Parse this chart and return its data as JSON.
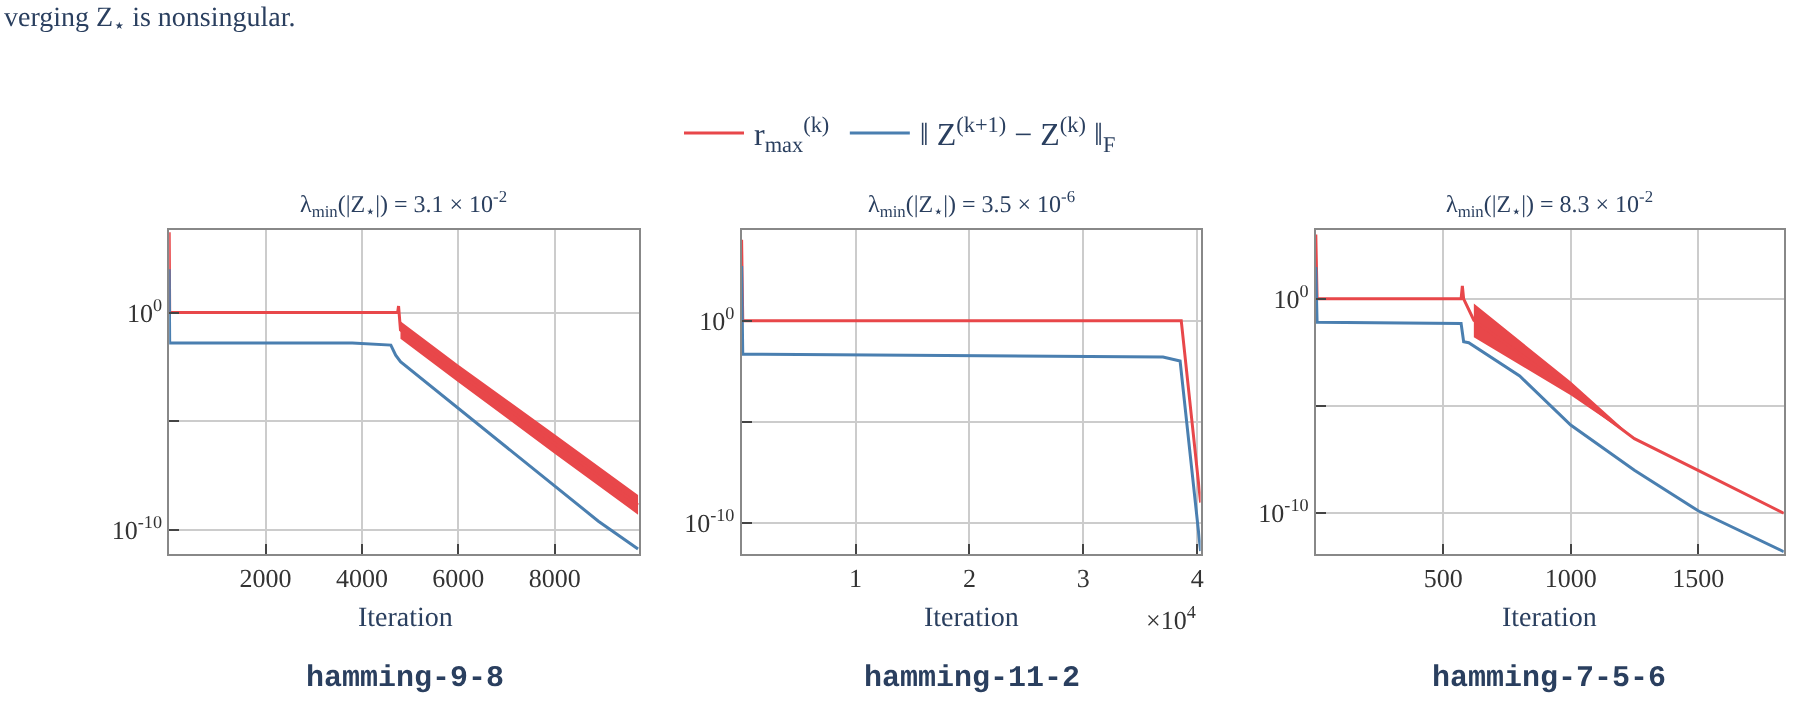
{
  "chart_data": [
    {
      "type": "line",
      "title": "λ$_{min}$(|Z$_{⋆}$|) = 3.1 × 10$^{-2}$",
      "xlabel": "Iteration",
      "log": "y",
      "grid": true,
      "legend": "top",
      "line_style": "solid",
      "marker": "none",
      "annotations": [
        "hamming-9-8",
        "verging Z$_{⋆}$ is nonsingular."
      ],
      "xlim": [
        0,
        9750
      ],
      "xticks": [
        2000,
        4000,
        6000,
        8000
      ],
      "ylim": [
        8e-12,
        6300
      ],
      "yticks": [
        {
          "value": 1,
          "label": "10$^{0}$"
        },
        {
          "value": 1e-05,
          "label": null
        },
        {
          "value": 1e-10,
          "label": "10$^{-10}$"
        }
      ],
      "series": [
        {
          "name": "r$_{max}$$^{(k)}$",
          "color": "#e8474a",
          "x": [
            0,
            10,
            4740,
            4760,
            4800,
            6000,
            8000,
            9730
          ],
          "values": [
            5000,
            1,
            1,
            2,
            0.16,
            0.0017,
            9.5e-07,
            1.4e-09
          ],
          "upper": [
            null,
            null,
            null,
            null,
            0.4,
            0.004,
            2.5e-06,
            4e-09
          ],
          "lower": [
            null,
            null,
            null,
            null,
            0.063,
            0.00063,
            3.2e-07,
            5e-10
          ]
        },
        {
          "name": "‖ Z$^{(k+1)}$ − Z$^{(k)}$ ‖$_{F}$",
          "color": "#4a7fb0",
          "x": [
            0,
            10,
            3800,
            4600,
            4700,
            4800,
            8907,
            9730
          ],
          "values": [
            100,
            0.04,
            0.04,
            0.032,
            0.011,
            0.0055,
            2.5e-10,
            1.3e-11
          ]
        }
      ]
    },
    {
      "type": "line",
      "title": "λ$_{min}$(|Z$_{⋆}$|) = 3.5 × 10$^{-6}$",
      "xlabel": "Iteration",
      "log": "y",
      "grid": true,
      "legend": "top",
      "line_style": "solid",
      "marker": "none",
      "annotations": [
        "hamming-11-2",
        "×10$^{4}$"
      ],
      "xlim": [
        0,
        4.03
      ],
      "xticks": [
        1,
        2,
        3,
        4
      ],
      "ylim": [
        3e-12,
        30000
      ],
      "yticks": [
        {
          "value": 1,
          "label": "10$^{0}$"
        },
        {
          "value": 1e-05,
          "label": null
        },
        {
          "value": 1e-10,
          "label": "10$^{-10}$"
        }
      ],
      "series": [
        {
          "name": "r$_{max}$$^{(k)}$",
          "color": "#e8474a",
          "x": [
            0,
            0.01,
            3.86,
            4.03
          ],
          "values": [
            10000,
            1,
            1,
            1e-09
          ]
        },
        {
          "name": "‖ Z$^{(k+1)}$ − Z$^{(k)}$ ‖$_{F}$",
          "color": "#4a7fb0",
          "x": [
            0,
            0.01,
            3.7,
            3.85,
            4.03
          ],
          "values": [
            500,
            0.022,
            0.016,
            0.01,
            4e-12
          ]
        }
      ]
    },
    {
      "type": "line",
      "title": "λ$_{min}$(|Z$_{⋆}$|) = 8.3 × 10$^{-2}$",
      "xlabel": "Iteration",
      "log": "y",
      "grid": true,
      "legend": "top",
      "line_style": "solid",
      "marker": "none",
      "annotations": [
        "hamming-7-5-6"
      ],
      "xlim": [
        0,
        1836
      ],
      "xticks": [
        500,
        1000,
        1500
      ],
      "ylim": [
        1.3e-12,
        1600
      ],
      "yticks": [
        {
          "value": 1,
          "label": "10$^{0}$"
        },
        {
          "value": 1e-05,
          "label": null
        },
        {
          "value": 1e-10,
          "label": "10$^{-10}$"
        }
      ],
      "series": [
        {
          "name": "r$_{max}$$^{(k)}$",
          "color": "#e8474a",
          "x": [
            0,
            5,
            570,
            575,
            580,
            620,
            1000,
            1250,
            1500,
            1836
          ],
          "values": [
            1000,
            1,
            1,
            4,
            1,
            0.1,
            5e-05,
            3e-07,
            1e-08,
            1e-10
          ],
          "upper": [
            null,
            null,
            null,
            null,
            null,
            0.6,
            0.00014,
            3e-07,
            null,
            null
          ],
          "lower": [
            null,
            null,
            null,
            null,
            null,
            0.016,
            3.2e-05,
            3e-07,
            null,
            null
          ]
        },
        {
          "name": "‖ Z$^{(k+1)}$ − Z$^{(k)}$ ‖$_{F}$",
          "color": "#4a7fb0",
          "x": [
            0,
            5,
            570,
            580,
            600,
            800,
            1000,
            1250,
            1500,
            1836
          ],
          "values": [
            30,
            0.08,
            0.07,
            0.01,
            0.009,
            0.00025,
            1.3e-06,
            1e-08,
            1.3e-10,
            1.6e-12
          ]
        }
      ]
    }
  ]
}
